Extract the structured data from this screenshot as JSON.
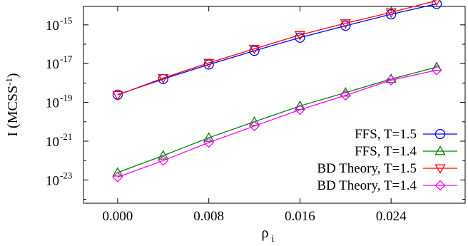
{
  "chart_data": {
    "type": "line",
    "title": "",
    "xlabel": "ρ",
    "xlabel_subscript": "i",
    "ylabel": "I (MCSS",
    "ylabel_superscript": "-1",
    "ylabel_suffix": ")",
    "y_scale": "log",
    "xlim": [
      -0.003,
      0.0305
    ],
    "ylim_log10": [
      -24.2,
      -14.05
    ],
    "x_ticks": [
      0.0,
      0.008,
      0.016,
      0.024
    ],
    "x_tick_labels": [
      "0.000",
      "0.008",
      "0.016",
      "0.024"
    ],
    "y_tick_exponents": [
      -23,
      -21,
      -19,
      -17,
      -15
    ],
    "y_tick_labels": [
      "10",
      "10",
      "10",
      "10",
      "10"
    ],
    "y_tick_sup_labels": [
      "-23",
      "-21",
      "-19",
      "-17",
      "-15"
    ],
    "grid": false,
    "legend_position": "bottom-right",
    "x": [
      0.0,
      0.004,
      0.008,
      0.012,
      0.016,
      0.02,
      0.024,
      0.028
    ],
    "series": [
      {
        "name": "FFS, T=1.5",
        "color": "#0000ff",
        "marker": "circle",
        "values": [
          2.5e-19,
          1.6e-18,
          9e-18,
          4.6e-17,
          2.2e-16,
          9e-16,
          3.5e-15,
          1.2e-14
        ]
      },
      {
        "name": "FFS, T=1.4",
        "color": "#008000",
        "marker": "triangle-up",
        "values": [
          2.4e-23,
          1.8e-22,
          1.5e-21,
          1e-20,
          6.5e-20,
          3.2e-19,
          1.6e-18,
          6.6e-18
        ]
      },
      {
        "name": "BD Theory, T=1.5",
        "color": "#ff0000",
        "marker": "triangle-down",
        "values": [
          2.4e-19,
          1.8e-18,
          1.1e-17,
          5.8e-17,
          3e-16,
          1.2e-15,
          4.4e-15,
          1.8e-14
        ]
      },
      {
        "name": "BD Theory, T=1.4",
        "color": "#ff00ff",
        "marker": "diamond",
        "values": [
          1.4e-23,
          1e-22,
          8.5e-22,
          6e-21,
          4.2e-20,
          2.3e-19,
          1.4e-18,
          4.6e-18
        ]
      }
    ]
  }
}
